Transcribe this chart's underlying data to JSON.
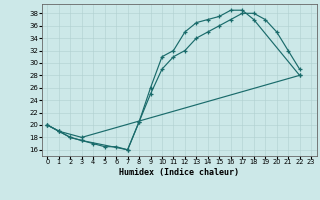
{
  "xlabel": "Humidex (Indice chaleur)",
  "bg_color": "#cce8e8",
  "grid_color": "#b0d0d0",
  "line_color": "#1a6b6b",
  "xlim": [
    -0.5,
    23.5
  ],
  "ylim": [
    15.0,
    39.5
  ],
  "yticks": [
    16,
    18,
    20,
    22,
    24,
    26,
    28,
    30,
    32,
    34,
    36,
    38
  ],
  "xticks": [
    0,
    1,
    2,
    3,
    4,
    5,
    6,
    7,
    8,
    9,
    10,
    11,
    12,
    13,
    14,
    15,
    16,
    17,
    18,
    19,
    20,
    21,
    22,
    23
  ],
  "line1_x": [
    0,
    1,
    2,
    3,
    4,
    5,
    6,
    7,
    8,
    9,
    10,
    11,
    12,
    13,
    14,
    15,
    16,
    17,
    18,
    22
  ],
  "line1_y": [
    20,
    19,
    18,
    17.5,
    17,
    16.5,
    16.5,
    16,
    20.5,
    26,
    31,
    32,
    35,
    36.5,
    37,
    37.5,
    38.5,
    38.5,
    37,
    28
  ],
  "line2_x": [
    0,
    1,
    2,
    3,
    7,
    8,
    9,
    10,
    11,
    12,
    13,
    14,
    15,
    16,
    17,
    18,
    19,
    20,
    21,
    22
  ],
  "line2_y": [
    20,
    19,
    18,
    17.5,
    16,
    20.5,
    25,
    29,
    31,
    32,
    34,
    35,
    36,
    37,
    38,
    38,
    37,
    35,
    32,
    29
  ],
  "line3_x": [
    0,
    1,
    3,
    22
  ],
  "line3_y": [
    20,
    19,
    18,
    28
  ]
}
